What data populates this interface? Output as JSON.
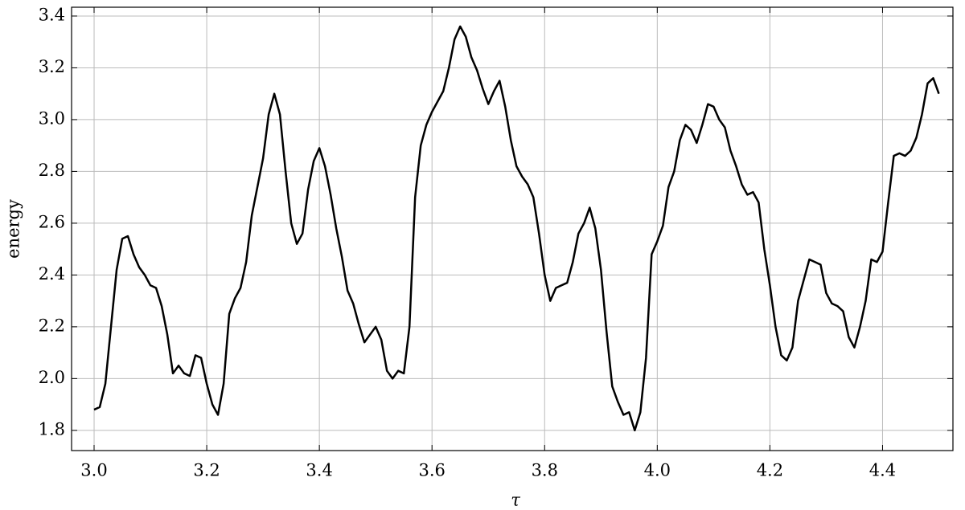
{
  "chart_data": {
    "type": "line",
    "xlabel": "τ",
    "ylabel": "energy",
    "color": "#000000",
    "grid": true,
    "x": [
      3.0,
      3.01,
      3.02,
      3.03,
      3.04,
      3.05,
      3.06,
      3.07,
      3.08,
      3.09,
      3.1,
      3.11,
      3.12,
      3.13,
      3.14,
      3.15,
      3.16,
      3.17,
      3.18,
      3.19,
      3.2,
      3.21,
      3.22,
      3.23,
      3.24,
      3.25,
      3.26,
      3.27,
      3.28,
      3.29,
      3.3,
      3.31,
      3.32,
      3.33,
      3.34,
      3.35,
      3.36,
      3.37,
      3.38,
      3.39,
      3.4,
      3.41,
      3.42,
      3.43,
      3.44,
      3.45,
      3.46,
      3.47,
      3.48,
      3.49,
      3.5,
      3.51,
      3.52,
      3.53,
      3.54,
      3.55,
      3.56,
      3.57,
      3.58,
      3.59,
      3.6,
      3.61,
      3.62,
      3.63,
      3.64,
      3.65,
      3.66,
      3.67,
      3.68,
      3.69,
      3.7,
      3.71,
      3.72,
      3.73,
      3.74,
      3.75,
      3.76,
      3.77,
      3.78,
      3.79,
      3.8,
      3.81,
      3.82,
      3.83,
      3.84,
      3.85,
      3.86,
      3.87,
      3.88,
      3.89,
      3.9,
      3.91,
      3.92,
      3.93,
      3.94,
      3.95,
      3.96,
      3.97,
      3.98,
      3.99,
      4.0,
      4.01,
      4.02,
      4.03,
      4.04,
      4.05,
      4.06,
      4.07,
      4.08,
      4.09,
      4.1,
      4.11,
      4.12,
      4.13,
      4.14,
      4.15,
      4.16,
      4.17,
      4.18,
      4.19,
      4.2,
      4.21,
      4.22,
      4.23,
      4.24,
      4.25,
      4.26,
      4.27,
      4.28,
      4.29,
      4.3,
      4.31,
      4.32,
      4.33,
      4.34,
      4.35,
      4.36,
      4.37,
      4.38,
      4.39,
      4.4,
      4.41,
      4.42,
      4.43,
      4.44,
      4.45,
      4.46,
      4.47,
      4.48,
      4.49,
      4.5
    ],
    "values": [
      1.88,
      1.89,
      1.98,
      2.2,
      2.42,
      2.54,
      2.55,
      2.48,
      2.43,
      2.4,
      2.36,
      2.35,
      2.28,
      2.17,
      2.02,
      2.05,
      2.02,
      2.01,
      2.09,
      2.08,
      1.98,
      1.9,
      1.86,
      1.98,
      2.25,
      2.31,
      2.35,
      2.45,
      2.63,
      2.74,
      2.85,
      3.02,
      3.1,
      3.02,
      2.8,
      2.6,
      2.52,
      2.56,
      2.73,
      2.84,
      2.89,
      2.82,
      2.71,
      2.58,
      2.47,
      2.34,
      2.29,
      2.21,
      2.14,
      2.17,
      2.2,
      2.15,
      2.03,
      2.0,
      2.03,
      2.02,
      2.2,
      2.7,
      2.9,
      2.98,
      3.03,
      3.07,
      3.11,
      3.2,
      3.31,
      3.36,
      3.32,
      3.24,
      3.19,
      3.12,
      3.06,
      3.11,
      3.15,
      3.05,
      2.92,
      2.82,
      2.78,
      2.75,
      2.7,
      2.56,
      2.4,
      2.3,
      2.35,
      2.36,
      2.37,
      2.45,
      2.56,
      2.6,
      2.66,
      2.58,
      2.42,
      2.18,
      1.97,
      1.91,
      1.86,
      1.87,
      1.8,
      1.87,
      2.08,
      2.48,
      2.53,
      2.59,
      2.74,
      2.8,
      2.92,
      2.98,
      2.96,
      2.91,
      2.98,
      3.06,
      3.05,
      3.0,
      2.97,
      2.88,
      2.82,
      2.75,
      2.71,
      2.72,
      2.68,
      2.5,
      2.36,
      2.2,
      2.09,
      2.07,
      2.12,
      2.3,
      2.38,
      2.46,
      2.45,
      2.44,
      2.33,
      2.29,
      2.28,
      2.26,
      2.16,
      2.12,
      2.2,
      2.3,
      2.46,
      2.45,
      2.49,
      2.68,
      2.86,
      2.87,
      2.86,
      2.88,
      2.93,
      3.02,
      3.14,
      3.16,
      3.1
    ],
    "xlim": [
      2.96,
      4.525
    ],
    "ylim": [
      1.722,
      3.434
    ],
    "xticks": [
      {
        "value": 3.0,
        "label": "3.0"
      },
      3.2,
      3.4,
      3.6,
      3.8,
      {
        "value": 4.0,
        "label": "4.0"
      },
      4.2,
      4.4
    ],
    "yticks": [
      1.8,
      {
        "value": 2.0,
        "label": "2.0"
      },
      2.2,
      2.4,
      2.6,
      2.8,
      {
        "value": 3.0,
        "label": "3.0"
      },
      3.2,
      3.4
    ]
  }
}
